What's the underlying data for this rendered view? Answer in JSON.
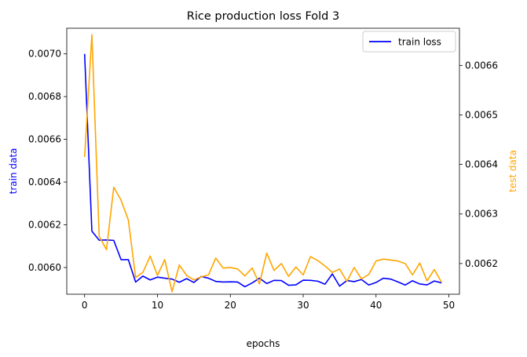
{
  "chart_data": {
    "type": "line",
    "title": "Rice production loss Fold 3",
    "xlabel": "epochs",
    "ylabel_left": "train data",
    "ylabel_right": "test data",
    "xlim": [
      -2.45,
      51.45
    ],
    "ylim_left": [
      0.005875,
      0.00712
    ],
    "ylim_right": [
      0.006138,
      0.006675
    ],
    "x_ticks": [
      0,
      10,
      20,
      30,
      40,
      50
    ],
    "y_left_ticks": [
      0.006,
      0.0062,
      0.0064,
      0.0066,
      0.0068,
      0.007
    ],
    "y_right_ticks": [
      0.0062,
      0.0063,
      0.0064,
      0.0065,
      0.0066
    ],
    "x_tick_labels": [
      "0",
      "10",
      "20",
      "30",
      "40",
      "50"
    ],
    "y_left_tick_labels": [
      "0.0060",
      "0.0062",
      "0.0064",
      "0.0066",
      "0.0068",
      "0.0070"
    ],
    "y_right_tick_labels": [
      "0.0062",
      "0.0063",
      "0.0064",
      "0.0065",
      "0.0066"
    ],
    "grid": false,
    "legend_position": "top-right",
    "legend_label": "train loss",
    "colors": {
      "train": "#0000ff",
      "test": "#ffa500",
      "axis": "#000000"
    },
    "x": [
      0,
      1,
      2,
      3,
      4,
      5,
      6,
      7,
      8,
      9,
      10,
      11,
      12,
      13,
      14,
      15,
      16,
      17,
      18,
      19,
      20,
      21,
      22,
      23,
      24,
      25,
      26,
      27,
      28,
      29,
      30,
      31,
      32,
      33,
      34,
      35,
      36,
      37,
      38,
      39,
      40,
      41,
      42,
      43,
      44,
      45,
      46,
      47,
      48,
      49
    ],
    "series": [
      {
        "name": "train loss",
        "axis": "left",
        "values": [
          0.007,
          0.00617,
          0.006128,
          0.006129,
          0.006127,
          0.006037,
          0.006037,
          0.005932,
          0.00596,
          0.005942,
          0.005955,
          0.00595,
          0.005946,
          0.005931,
          0.005948,
          0.00593,
          0.005958,
          0.00595,
          0.005935,
          0.005932,
          0.005933,
          0.005932,
          0.00591,
          0.005928,
          0.00595,
          0.005925,
          0.00594,
          0.005939,
          0.005917,
          0.005919,
          0.005941,
          0.00594,
          0.005936,
          0.005922,
          0.00597,
          0.005913,
          0.005939,
          0.005934,
          0.005944,
          0.005918,
          0.00593,
          0.00595,
          0.005946,
          0.005933,
          0.005918,
          0.005938,
          0.005923,
          0.005919,
          0.005937,
          0.005928
        ]
      },
      {
        "axis": "right",
        "values": [
          0.006415,
          0.006662,
          0.006255,
          0.006228,
          0.006354,
          0.006328,
          0.006288,
          0.006172,
          0.006182,
          0.006215,
          0.006176,
          0.006208,
          0.006143,
          0.006197,
          0.006176,
          0.006167,
          0.006173,
          0.006177,
          0.006211,
          0.006191,
          0.006192,
          0.006189,
          0.006175,
          0.006191,
          0.006159,
          0.006221,
          0.006186,
          0.0062,
          0.006174,
          0.006193,
          0.006177,
          0.006214,
          0.006206,
          0.006195,
          0.006182,
          0.006189,
          0.006164,
          0.006192,
          0.006169,
          0.006178,
          0.006205,
          0.006209,
          0.006207,
          0.006205,
          0.0062,
          0.006177,
          0.006201,
          0.006165,
          0.006188,
          0.006162
        ]
      }
    ]
  }
}
